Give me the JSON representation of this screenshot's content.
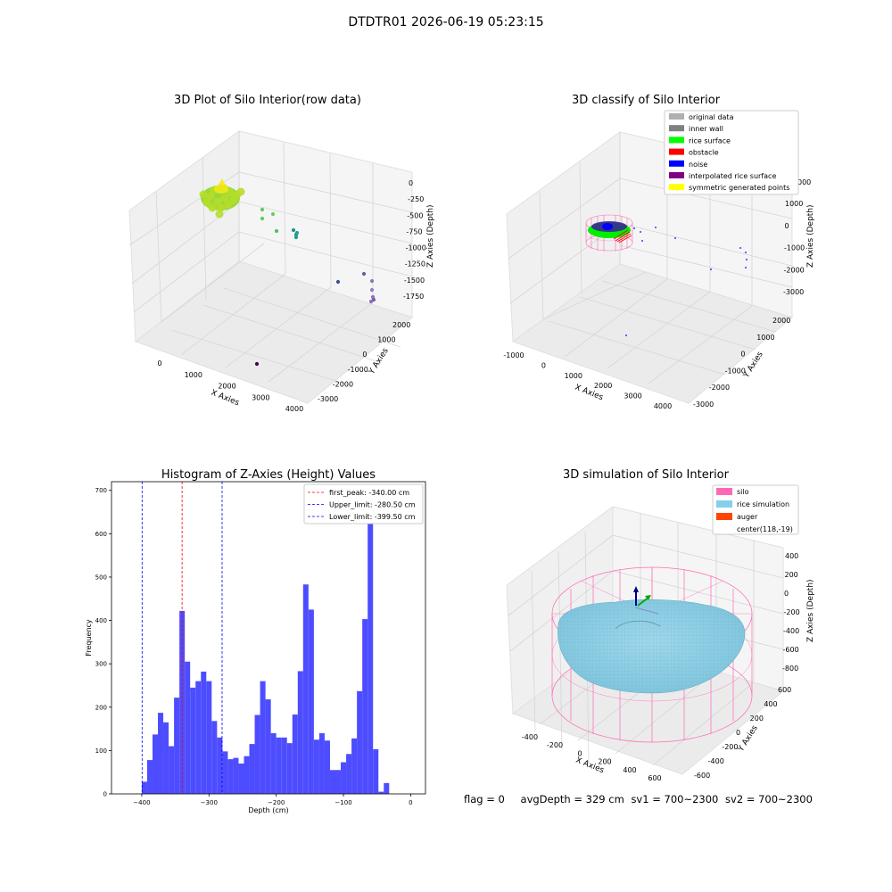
{
  "figure": {
    "suptitle": "DTDTR01 2026-06-19 05:23:15",
    "status": {
      "flag": "flag = 0",
      "avg_depth": "avgDepth = 329 cm",
      "sv1": "sv1 = 700~2300",
      "sv2": "sv2 = 700~2300"
    }
  },
  "colors": {
    "hist_bar": "#4d4dff",
    "first_peak": "#ff0000",
    "limits": "#0000ff",
    "silo": "#ff69b4",
    "rice_sim": "#87ceeb",
    "auger": "#ff4500",
    "pane": "#f2f2f2",
    "grid": "#d8d8d8"
  },
  "chart_data": [
    {
      "type": "scatter",
      "title": "3D Plot of Silo Interior(row data)",
      "xlabel": "X Axies",
      "ylabel": "Y Axies",
      "zlabel": "Z Axies (Depth)",
      "x_ticks": [
        "0",
        "1000",
        "2000",
        "3000",
        "4000"
      ],
      "y_ticks": [
        "-3000",
        "-2000",
        "-1000",
        "0",
        "1000",
        "2000"
      ],
      "z_ticks": [
        "0",
        "-250",
        "-500",
        "-750",
        "-1000",
        "-1250",
        "-1500",
        "-1750"
      ],
      "colormap": "viridis (color by depth)",
      "clusters": [
        {
          "x": 300,
          "y": 300,
          "z": -340,
          "note": "dense rice surface cluster (yellow-green)"
        },
        {
          "x": 800,
          "y": 200,
          "z": -900,
          "note": "scattered green points"
        },
        {
          "x": 2600,
          "y": -1500,
          "z": -1500,
          "note": "scattered blue-purple points"
        },
        {
          "x": 2900,
          "y": -2800,
          "z": -1800,
          "note": "single dark purple point"
        }
      ]
    },
    {
      "type": "scatter",
      "title": "3D classify of Silo Interior",
      "xlabel": "X Axies",
      "ylabel": "Y Axies",
      "zlabel": "Z Axies (Depth)",
      "x_ticks": [
        "-1000",
        "0",
        "1000",
        "2000",
        "3000",
        "4000"
      ],
      "y_ticks": [
        "-3000",
        "-2000",
        "-1000",
        "0",
        "1000",
        "2000"
      ],
      "z_ticks": [
        "1000",
        "0",
        "-1000",
        "-2000",
        "-3000"
      ],
      "z_top_partial": "000",
      "legend": [
        {
          "label": "original data",
          "color": "#b0b0b0"
        },
        {
          "label": "inner wall",
          "color": "#808080"
        },
        {
          "label": "rice surface",
          "color": "#00ff00"
        },
        {
          "label": "obstacle",
          "color": "#ff0000"
        },
        {
          "label": "noise",
          "color": "#0000ff"
        },
        {
          "label": "interpolated rice surface",
          "color": "#800080"
        },
        {
          "label": "symmetric generated points",
          "color": "#ffff00"
        }
      ],
      "legend_loc": "upper right"
    },
    {
      "type": "bar",
      "title": "Histogram of Z-Axies (Height) Values",
      "xlabel": "Depth (cm)",
      "ylabel": "Frequency",
      "xlim": [
        -445,
        22
      ],
      "ylim": [
        0,
        720
      ],
      "x_ticks": [
        -400,
        -300,
        -200,
        -100,
        0
      ],
      "x_tick_labels": [
        "−400",
        "−300",
        "−200",
        "−100",
        "0"
      ],
      "y_ticks": [
        0,
        100,
        200,
        300,
        400,
        500,
        600,
        700
      ],
      "y_tick_labels": [
        "0",
        "100",
        "200",
        "300",
        "400",
        "500",
        "600",
        "700"
      ],
      "bin_start": -400,
      "bin_width": 8,
      "values": [
        28,
        78,
        137,
        187,
        165,
        110,
        222,
        422,
        305,
        245,
        260,
        282,
        260,
        168,
        130,
        98,
        80,
        83,
        70,
        87,
        115,
        182,
        260,
        218,
        140,
        130,
        130,
        117,
        183,
        283,
        483,
        425,
        125,
        140,
        123,
        55,
        55,
        73,
        92,
        128,
        237,
        403,
        650,
        103,
        5,
        25
      ],
      "vlines": [
        {
          "x": -340.0,
          "label": "first_peak: -340.00 cm",
          "style": "red"
        },
        {
          "x": -280.5,
          "label": "Upper_limit: -280.50 cm",
          "style": "blue"
        },
        {
          "x": -399.5,
          "label": "Lower_limit: -399.50 cm",
          "style": "blue"
        }
      ],
      "legend_loc": "upper right"
    },
    {
      "type": "surface",
      "title": "3D simulation of Silo Interior",
      "xlabel": "X Axies",
      "ylabel": "Y Axies",
      "zlabel": "Z Axies (Depth)",
      "x_ticks": [
        "-400",
        "-200",
        "0",
        "200",
        "400",
        "600"
      ],
      "y_ticks": [
        "-600",
        "-400",
        "-200",
        "0",
        "200",
        "400",
        "600"
      ],
      "z_ticks": [
        "400",
        "200",
        "0",
        "-200",
        "-400",
        "-600",
        "-800"
      ],
      "legend": [
        {
          "label": "silo",
          "color": "#ff69b4"
        },
        {
          "label": "rice simulation",
          "color": "#87ceeb"
        },
        {
          "label": "auger",
          "color": "#ff4500"
        },
        {
          "label": "center(118,-19)",
          "color": ""
        }
      ],
      "legend_loc": "upper right"
    }
  ]
}
